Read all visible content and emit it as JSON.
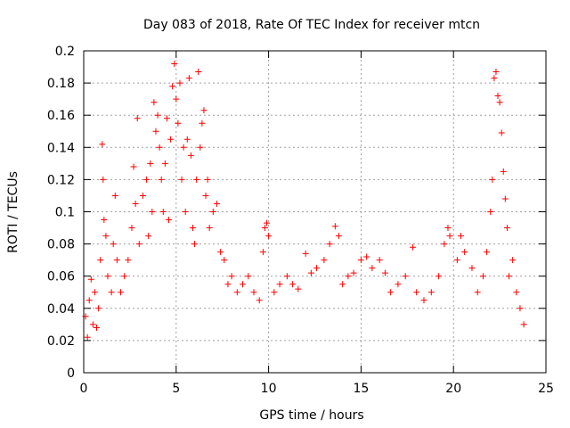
{
  "chart_data": {
    "type": "scatter",
    "title": "Day 083 of 2018, Rate Of TEC Index for receiver mtcn",
    "xlabel": "GPS time / hours",
    "ylabel": "ROTI / TECUs",
    "xlim": [
      0,
      25
    ],
    "ylim": [
      0,
      0.2
    ],
    "xticks": [
      "0",
      "5",
      "10",
      "15",
      "20",
      "25"
    ],
    "yticks": [
      "0",
      "0.02",
      "0.04",
      "0.06",
      "0.08",
      "0.1",
      "0.12",
      "0.14",
      "0.16",
      "0.18",
      "0.2"
    ],
    "grid": true,
    "marker": "plus",
    "color": "#ff0000",
    "series": [
      {
        "values": [
          [
            0.1,
            0.035
          ],
          [
            0.2,
            0.022
          ],
          [
            0.3,
            0.045
          ],
          [
            0.4,
            0.058
          ],
          [
            0.5,
            0.03
          ],
          [
            0.6,
            0.05
          ],
          [
            0.7,
            0.028
          ],
          [
            0.8,
            0.04
          ],
          [
            0.9,
            0.07
          ],
          [
            1.0,
            0.142
          ],
          [
            1.05,
            0.12
          ],
          [
            1.1,
            0.095
          ],
          [
            1.2,
            0.085
          ],
          [
            1.3,
            0.06
          ],
          [
            1.5,
            0.05
          ],
          [
            1.6,
            0.08
          ],
          [
            1.7,
            0.11
          ],
          [
            1.8,
            0.07
          ],
          [
            2.0,
            0.05
          ],
          [
            2.2,
            0.06
          ],
          [
            2.4,
            0.07
          ],
          [
            2.6,
            0.09
          ],
          [
            2.7,
            0.128
          ],
          [
            2.8,
            0.105
          ],
          [
            2.9,
            0.158
          ],
          [
            3.0,
            0.08
          ],
          [
            3.2,
            0.11
          ],
          [
            3.4,
            0.12
          ],
          [
            3.5,
            0.085
          ],
          [
            3.6,
            0.13
          ],
          [
            3.7,
            0.1
          ],
          [
            3.8,
            0.168
          ],
          [
            3.9,
            0.15
          ],
          [
            4.0,
            0.16
          ],
          [
            4.1,
            0.14
          ],
          [
            4.2,
            0.12
          ],
          [
            4.3,
            0.1
          ],
          [
            4.4,
            0.13
          ],
          [
            4.5,
            0.158
          ],
          [
            4.6,
            0.095
          ],
          [
            4.7,
            0.145
          ],
          [
            4.8,
            0.178
          ],
          [
            4.9,
            0.192
          ],
          [
            5.0,
            0.17
          ],
          [
            5.1,
            0.155
          ],
          [
            5.2,
            0.18
          ],
          [
            5.3,
            0.12
          ],
          [
            5.4,
            0.14
          ],
          [
            5.5,
            0.1
          ],
          [
            5.6,
            0.145
          ],
          [
            5.7,
            0.183
          ],
          [
            5.8,
            0.135
          ],
          [
            5.9,
            0.09
          ],
          [
            6.0,
            0.08
          ],
          [
            6.1,
            0.12
          ],
          [
            6.2,
            0.187
          ],
          [
            6.3,
            0.14
          ],
          [
            6.4,
            0.155
          ],
          [
            6.5,
            0.163
          ],
          [
            6.6,
            0.11
          ],
          [
            6.7,
            0.12
          ],
          [
            6.8,
            0.09
          ],
          [
            7.0,
            0.1
          ],
          [
            7.2,
            0.105
          ],
          [
            7.4,
            0.075
          ],
          [
            7.6,
            0.07
          ],
          [
            7.8,
            0.055
          ],
          [
            8.0,
            0.06
          ],
          [
            8.3,
            0.05
          ],
          [
            8.6,
            0.055
          ],
          [
            8.9,
            0.06
          ],
          [
            9.2,
            0.05
          ],
          [
            9.5,
            0.045
          ],
          [
            9.7,
            0.075
          ],
          [
            9.8,
            0.09
          ],
          [
            9.9,
            0.093
          ],
          [
            10.0,
            0.085
          ],
          [
            10.3,
            0.05
          ],
          [
            10.6,
            0.055
          ],
          [
            11.0,
            0.06
          ],
          [
            11.3,
            0.055
          ],
          [
            11.6,
            0.052
          ],
          [
            12.0,
            0.074
          ],
          [
            12.3,
            0.062
          ],
          [
            12.6,
            0.065
          ],
          [
            13.0,
            0.07
          ],
          [
            13.3,
            0.08
          ],
          [
            13.6,
            0.091
          ],
          [
            13.8,
            0.085
          ],
          [
            14.0,
            0.055
          ],
          [
            14.3,
            0.06
          ],
          [
            14.6,
            0.062
          ],
          [
            15.0,
            0.07
          ],
          [
            15.3,
            0.072
          ],
          [
            15.6,
            0.065
          ],
          [
            16.0,
            0.07
          ],
          [
            16.3,
            0.062
          ],
          [
            16.6,
            0.05
          ],
          [
            17.0,
            0.055
          ],
          [
            17.4,
            0.06
          ],
          [
            17.8,
            0.078
          ],
          [
            18.0,
            0.05
          ],
          [
            18.4,
            0.045
          ],
          [
            18.8,
            0.05
          ],
          [
            19.2,
            0.06
          ],
          [
            19.5,
            0.08
          ],
          [
            19.7,
            0.09
          ],
          [
            19.8,
            0.085
          ],
          [
            20.2,
            0.07
          ],
          [
            20.4,
            0.085
          ],
          [
            20.6,
            0.075
          ],
          [
            21.0,
            0.065
          ],
          [
            21.3,
            0.05
          ],
          [
            21.6,
            0.06
          ],
          [
            21.8,
            0.075
          ],
          [
            22.0,
            0.1
          ],
          [
            22.1,
            0.12
          ],
          [
            22.2,
            0.183
          ],
          [
            22.3,
            0.187
          ],
          [
            22.4,
            0.172
          ],
          [
            22.5,
            0.168
          ],
          [
            22.6,
            0.149
          ],
          [
            22.7,
            0.125
          ],
          [
            22.8,
            0.108
          ],
          [
            22.9,
            0.09
          ],
          [
            23.0,
            0.06
          ],
          [
            23.2,
            0.07
          ],
          [
            23.4,
            0.05
          ],
          [
            23.6,
            0.04
          ],
          [
            23.8,
            0.03
          ]
        ]
      }
    ]
  }
}
